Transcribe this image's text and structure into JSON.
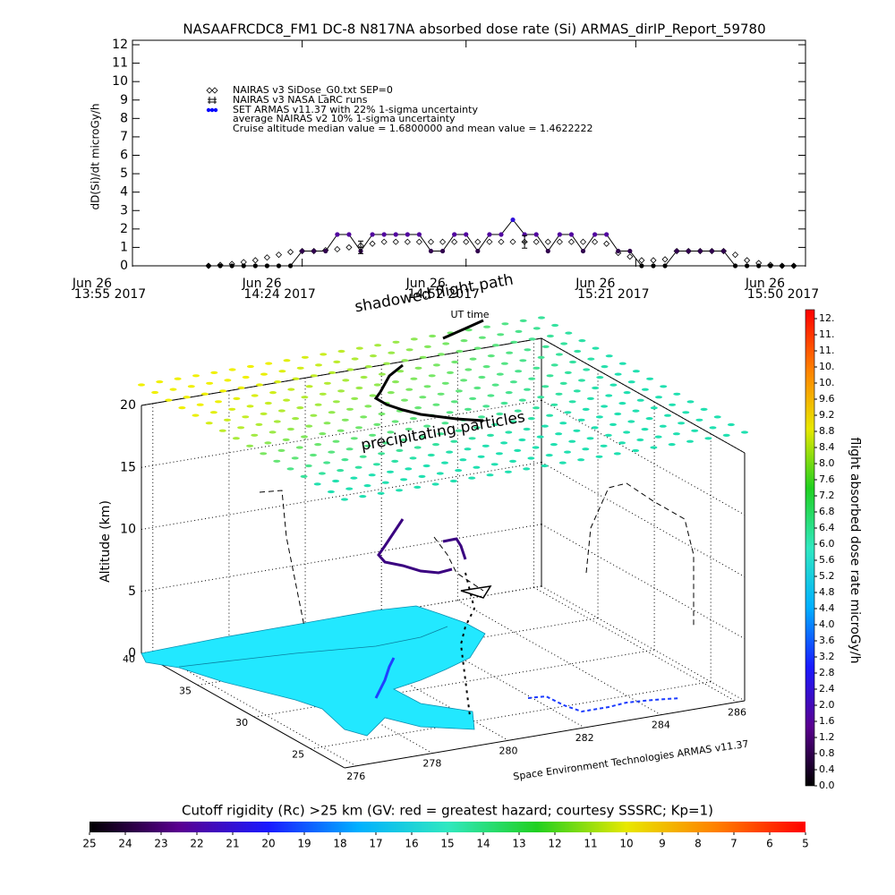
{
  "chart_data": [
    {
      "type": "line",
      "title": "NASAAFRCDC8_FM1 DC-8   N817NA absorbed dose rate (Si) ARMAS_dirIP_Report_59780",
      "y_label": "dD(Si)/dt microGy/h",
      "x_label": "UT time",
      "x": [
        "14:08",
        "14:10",
        "14:12",
        "14:14",
        "14:16",
        "14:18",
        "14:20",
        "14:22",
        "14:24",
        "14:26",
        "14:28",
        "14:30",
        "14:32",
        "14:34",
        "14:36",
        "14:38",
        "14:40",
        "14:42",
        "14:44",
        "14:46",
        "14:48",
        "14:50",
        "14:52",
        "14:54",
        "14:56",
        "14:58",
        "15:00",
        "15:02",
        "15:04",
        "15:06",
        "15:08",
        "15:10",
        "15:12",
        "15:14",
        "15:16",
        "15:18",
        "15:20",
        "15:22",
        "15:24",
        "15:26",
        "15:28",
        "15:30",
        "15:32",
        "15:34",
        "15:36",
        "15:38",
        "15:40",
        "15:42",
        "15:44",
        "15:46",
        "15:48"
      ],
      "xlim": [
        "13:55",
        "15:50"
      ],
      "xticks": [
        {
          "value": "13:55",
          "label": [
            "Jun 26",
            "13:55 2017"
          ]
        },
        {
          "value": "14:24",
          "label": [
            "Jun 26",
            "14:24 2017"
          ]
        },
        {
          "value": "14:52",
          "label": [
            "Jun 26",
            "14:52 2017"
          ]
        },
        {
          "value": "15:21",
          "label": [
            "Jun 26",
            "15:21 2017"
          ]
        },
        {
          "value": "15:50",
          "label": [
            "Jun 26",
            "15:50 2017"
          ]
        }
      ],
      "ylim": [
        0,
        12
      ],
      "yticks": [
        0,
        1,
        2,
        3,
        4,
        5,
        6,
        7,
        8,
        9,
        10,
        11,
        12
      ],
      "series": [
        {
          "name": "NAIRAS v3 SiDose_G0.txt SEP=0",
          "color": "#000000",
          "values": [
            0,
            0.05,
            0.1,
            0.2,
            0.3,
            0.45,
            0.6,
            0.75,
            0.8,
            0.8,
            0.85,
            0.9,
            1,
            1.1,
            1.2,
            1.3,
            1.3,
            1.3,
            1.3,
            1.3,
            1.3,
            1.3,
            1.3,
            1.3,
            1.3,
            1.3,
            1.3,
            1.3,
            1.3,
            1.3,
            1.3,
            1.3,
            1.3,
            1.3,
            1.2,
            0.7,
            0.5,
            0.3,
            0.3,
            0.35,
            0.8,
            0.8,
            0.8,
            0.8,
            0.8,
            0.6,
            0.3,
            0.15,
            0.05,
            0,
            0
          ]
        },
        {
          "name": "SET ARMAS v11.37 with 22% 1-sigma uncertainty",
          "color": "#0000ff",
          "values": [
            0,
            0,
            0,
            0,
            0,
            0,
            0,
            0,
            0.8,
            0.8,
            0.8,
            1.7,
            1.7,
            0.8,
            1.7,
            1.7,
            1.7,
            1.7,
            1.7,
            0.8,
            0.8,
            1.7,
            1.7,
            0.8,
            1.7,
            1.7,
            2.5,
            1.7,
            1.7,
            0.8,
            1.7,
            1.7,
            0.8,
            1.7,
            1.7,
            0.8,
            0.8,
            0,
            0,
            0,
            0.8,
            0.8,
            0.8,
            0.8,
            0.8,
            0,
            0,
            0,
            0,
            0,
            0
          ]
        },
        {
          "name": "NAIRAS v3 NASA LaRC runs",
          "color": "#000000",
          "values": [
            null,
            null,
            null,
            null,
            null,
            null,
            null,
            null,
            null,
            null,
            null,
            null,
            null,
            1.0,
            null,
            null,
            null,
            null,
            null,
            null,
            null,
            null,
            null,
            null,
            null,
            null,
            null,
            1.3,
            null,
            null,
            null,
            null,
            null,
            null,
            null,
            null,
            null,
            null,
            null,
            null,
            null,
            null,
            null,
            null,
            null,
            null,
            null,
            null,
            null,
            null,
            null
          ]
        }
      ],
      "notes": [
        "average NAIRAS v2 10% 1-sigma uncertainty",
        "Cruise altitude median value = 1.6800000 and mean value = 1.4622222"
      ]
    },
    {
      "type": "surface3d",
      "z_label": "Altitude (km)",
      "zlim": [
        0,
        20
      ],
      "zticks": [
        0,
        5,
        10,
        15,
        20
      ],
      "latlim": [
        40,
        22
      ],
      "lat_ticks": [
        40,
        35,
        30,
        25
      ],
      "lonlim": [
        275.7,
        286.2
      ],
      "lon_ticks": [
        276,
        278,
        280,
        282,
        284,
        286
      ],
      "annotations": [
        "shadowed flight path",
        "precipitating particles",
        "Space Environment Technologies ARMAS v11.37"
      ]
    },
    {
      "type": "colorbar",
      "label": "flight absorbed dose rate microGy/h",
      "lim": [
        0,
        12
      ],
      "ticks": [
        {
          "value": 0,
          "label": "0.0"
        },
        0.4,
        0.8,
        1.2,
        1.6,
        {
          "value": 2,
          "label": "2.0"
        },
        2.4,
        2.8,
        3.2,
        3.6,
        {
          "value": 4,
          "label": "4.0"
        },
        4.4,
        4.8,
        5.2,
        5.6,
        {
          "value": 6,
          "label": "6.0"
        },
        6.4,
        6.8,
        7.2,
        7.6,
        {
          "value": 8,
          "label": "8.0"
        },
        8.4,
        8.8,
        9.2,
        9.6,
        {
          "value": 10,
          "label": "10."
        },
        {
          "value": 10.4,
          "label": "10."
        },
        {
          "value": 10.8,
          "label": "11."
        },
        {
          "value": 11.2,
          "label": "11."
        },
        {
          "value": 11.6,
          "label": "12."
        }
      ],
      "colors": [
        "#000000",
        "#5a0090",
        "#1a1aff",
        "#00b0ff",
        "#30e8c0",
        "#20d020",
        "#e8e800",
        "#ff8000",
        "#ff0000"
      ]
    },
    {
      "type": "colorbar",
      "label": "Cutoff rigidity (Rc) >25 km (GV: red = greatest hazard; courtesy SSSRC; Kp=1)",
      "lim": [
        25,
        5
      ],
      "ticks": [
        25,
        24,
        23,
        22,
        21,
        20,
        19,
        18,
        17,
        16,
        15,
        14,
        13,
        12,
        11,
        10,
        9,
        8,
        7,
        6,
        5
      ],
      "colors": [
        "#000000",
        "#5a0090",
        "#1a1aff",
        "#00b0ff",
        "#30e8c0",
        "#20d020",
        "#e8e800",
        "#ff8000",
        "#ff0000"
      ]
    }
  ]
}
